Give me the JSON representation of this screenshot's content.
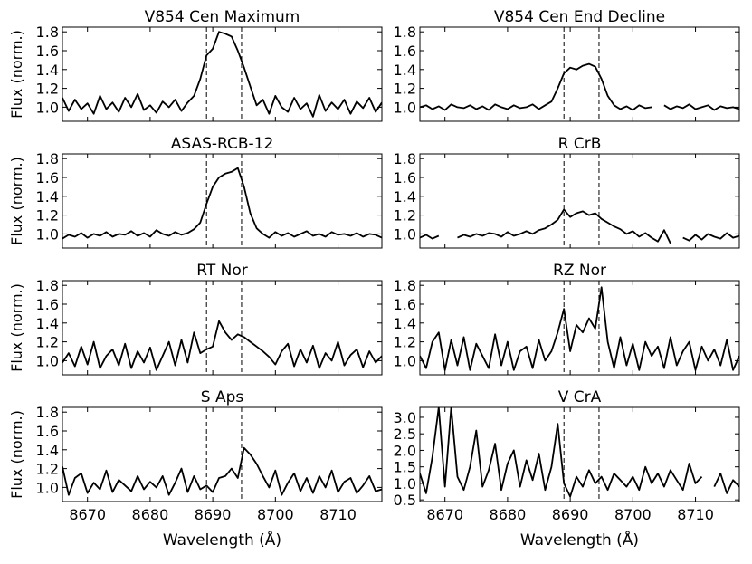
{
  "chart_data": {
    "type": "line",
    "xlabel": "Wavelength (Å)",
    "ylabel": "Flux (norm.)",
    "xlim": [
      8666,
      8717
    ],
    "xticks": [
      8670,
      8680,
      8690,
      8700,
      8710
    ],
    "xticklabels": [
      "8670",
      "8680",
      "8690",
      "8700",
      "8710"
    ],
    "reference_lines": [
      8689.0,
      8694.6
    ],
    "panels": [
      {
        "title": "V854 Cen Maximum",
        "ylim": [
          0.85,
          1.85
        ],
        "yticks": [
          1.0,
          1.2,
          1.4,
          1.6,
          1.8
        ],
        "yticklabels": [
          "1.0",
          "1.2",
          "1.4",
          "1.6",
          "1.8"
        ],
        "x": [
          8666,
          8667,
          8668,
          8669,
          8670,
          8671,
          8672,
          8673,
          8674,
          8675,
          8676,
          8677,
          8678,
          8679,
          8680,
          8681,
          8682,
          8683,
          8684,
          8685,
          8686,
          8687,
          8688,
          8689,
          8690,
          8691,
          8692,
          8693,
          8694,
          8695,
          8696,
          8697,
          8698,
          8699,
          8700,
          8701,
          8702,
          8703,
          8704,
          8705,
          8706,
          8707,
          8708,
          8709,
          8710,
          8711,
          8712,
          8713,
          8714,
          8715,
          8716,
          8717
        ],
        "y": [
          1.1,
          0.96,
          1.08,
          0.98,
          1.04,
          0.93,
          1.12,
          0.98,
          1.05,
          0.95,
          1.1,
          1.0,
          1.14,
          0.97,
          1.02,
          0.94,
          1.06,
          1.0,
          1.08,
          0.96,
          1.05,
          1.12,
          1.3,
          1.55,
          1.62,
          1.8,
          1.78,
          1.75,
          1.6,
          1.42,
          1.22,
          1.02,
          1.08,
          0.93,
          1.12,
          1.0,
          0.95,
          1.1,
          0.98,
          1.04,
          0.9,
          1.13,
          0.96,
          1.05,
          0.98,
          1.08,
          0.93,
          1.06,
          0.99,
          1.1,
          0.95,
          1.05
        ]
      },
      {
        "title": "V854 Cen End Decline",
        "ylim": [
          0.85,
          1.85
        ],
        "yticks": [
          1.0,
          1.2,
          1.4,
          1.6,
          1.8
        ],
        "yticklabels": [
          "1.0",
          "1.2",
          "1.4",
          "1.6",
          "1.8"
        ],
        "x": [
          8666,
          8667,
          8668,
          8669,
          8670,
          8671,
          8672,
          8673,
          8674,
          8675,
          8676,
          8677,
          8678,
          8679,
          8680,
          8681,
          8682,
          8683,
          8684,
          8685,
          8686,
          8687,
          8688,
          8689,
          8690,
          8691,
          8692,
          8693,
          8694,
          8695,
          8696,
          8697,
          8698,
          8699,
          8700,
          8701,
          8702,
          8703,
          8704,
          8705,
          8706,
          8707,
          8708,
          8709,
          8710,
          8711,
          8712,
          8713,
          8714,
          8715,
          8716,
          8717
        ],
        "y": [
          1.0,
          1.02,
          0.98,
          1.01,
          0.97,
          1.03,
          1.0,
          0.99,
          1.02,
          0.98,
          1.01,
          0.97,
          1.03,
          1.0,
          0.98,
          1.02,
          0.99,
          1.0,
          1.03,
          0.98,
          1.02,
          1.06,
          1.2,
          1.36,
          1.42,
          1.4,
          1.44,
          1.46,
          1.43,
          1.3,
          1.12,
          1.02,
          0.98,
          1.01,
          0.97,
          1.02,
          0.99,
          1.0,
          null,
          1.02,
          0.98,
          1.01,
          0.99,
          1.03,
          0.98,
          1.0,
          1.02,
          0.97,
          1.01,
          0.99,
          1.0,
          0.98
        ]
      },
      {
        "title": "ASAS-RCB-12",
        "ylim": [
          0.85,
          1.85
        ],
        "yticks": [
          1.0,
          1.2,
          1.4,
          1.6,
          1.8
        ],
        "yticklabels": [
          "1.0",
          "1.2",
          "1.4",
          "1.6",
          "1.8"
        ],
        "x": [
          8666,
          8667,
          8668,
          8669,
          8670,
          8671,
          8672,
          8673,
          8674,
          8675,
          8676,
          8677,
          8678,
          8679,
          8680,
          8681,
          8682,
          8683,
          8684,
          8685,
          8686,
          8687,
          8688,
          8689,
          8690,
          8691,
          8692,
          8693,
          8694,
          8695,
          8696,
          8697,
          8698,
          8699,
          8700,
          8701,
          8702,
          8703,
          8704,
          8705,
          8706,
          8707,
          8708,
          8709,
          8710,
          8711,
          8712,
          8713,
          8714,
          8715,
          8716,
          8717
        ],
        "y": [
          0.95,
          0.99,
          0.97,
          1.01,
          0.96,
          1.0,
          0.98,
          1.02,
          0.97,
          1.0,
          0.99,
          1.03,
          0.98,
          1.01,
          0.97,
          1.04,
          1.0,
          0.98,
          1.02,
          0.99,
          1.01,
          1.05,
          1.12,
          1.32,
          1.5,
          1.6,
          1.64,
          1.66,
          1.7,
          1.5,
          1.22,
          1.06,
          1.0,
          0.96,
          1.02,
          0.98,
          1.01,
          0.97,
          1.0,
          1.03,
          0.98,
          1.0,
          0.97,
          1.02,
          0.99,
          1.0,
          0.98,
          1.01,
          0.97,
          1.0,
          0.99,
          0.96
        ]
      },
      {
        "title": "R CrB",
        "ylim": [
          0.85,
          1.85
        ],
        "yticks": [
          1.0,
          1.2,
          1.4,
          1.6,
          1.8
        ],
        "yticklabels": [
          "1.0",
          "1.2",
          "1.4",
          "1.6",
          "1.8"
        ],
        "x": [
          8666,
          8667,
          8668,
          8669,
          8670,
          8671,
          8672,
          8673,
          8674,
          8675,
          8676,
          8677,
          8678,
          8679,
          8680,
          8681,
          8682,
          8683,
          8684,
          8685,
          8686,
          8687,
          8688,
          8689,
          8690,
          8691,
          8692,
          8693,
          8694,
          8695,
          8696,
          8697,
          8698,
          8699,
          8700,
          8701,
          8702,
          8703,
          8704,
          8705,
          8706,
          8707,
          8708,
          8709,
          8710,
          8711,
          8712,
          8713,
          8714,
          8715,
          8716,
          8717
        ],
        "y": [
          0.96,
          0.99,
          0.95,
          0.98,
          null,
          null,
          0.96,
          0.99,
          0.97,
          1.0,
          0.98,
          1.01,
          1.0,
          0.97,
          1.02,
          0.98,
          1.0,
          1.03,
          1.0,
          1.04,
          1.06,
          1.1,
          1.15,
          1.26,
          1.18,
          1.22,
          1.24,
          1.2,
          1.22,
          1.16,
          1.12,
          1.08,
          1.05,
          1.0,
          1.03,
          0.97,
          1.01,
          0.96,
          0.92,
          1.04,
          0.9,
          null,
          0.96,
          0.93,
          0.99,
          0.94,
          1.0,
          0.97,
          0.95,
          1.01,
          0.96,
          0.98
        ]
      },
      {
        "title": "RT Nor",
        "ylim": [
          0.85,
          1.85
        ],
        "yticks": [
          1.0,
          1.2,
          1.4,
          1.6,
          1.8
        ],
        "yticklabels": [
          "1.0",
          "1.2",
          "1.4",
          "1.6",
          "1.8"
        ],
        "x": [
          8666,
          8667,
          8668,
          8669,
          8670,
          8671,
          8672,
          8673,
          8674,
          8675,
          8676,
          8677,
          8678,
          8679,
          8680,
          8681,
          8682,
          8683,
          8684,
          8685,
          8686,
          8687,
          8688,
          8689,
          8690,
          8691,
          8692,
          8693,
          8694,
          8695,
          8696,
          8697,
          8698,
          8699,
          8700,
          8701,
          8702,
          8703,
          8704,
          8705,
          8706,
          8707,
          8708,
          8709,
          8710,
          8711,
          8712,
          8713,
          8714,
          8715,
          8716,
          8717
        ],
        "y": [
          0.98,
          1.08,
          0.94,
          1.15,
          0.96,
          1.2,
          0.92,
          1.05,
          1.12,
          0.95,
          1.18,
          0.92,
          1.1,
          0.98,
          1.14,
          0.9,
          1.05,
          1.2,
          0.95,
          1.22,
          0.98,
          1.3,
          1.08,
          1.12,
          1.15,
          1.42,
          1.3,
          1.22,
          1.28,
          1.25,
          1.2,
          1.15,
          1.1,
          1.04,
          0.96,
          1.1,
          1.18,
          0.94,
          1.12,
          0.98,
          1.16,
          0.92,
          1.08,
          1.0,
          1.2,
          0.95,
          1.06,
          1.12,
          0.93,
          1.1,
          0.98,
          1.05
        ]
      },
      {
        "title": "RZ Nor",
        "ylim": [
          0.85,
          1.85
        ],
        "yticks": [
          1.0,
          1.2,
          1.4,
          1.6,
          1.8
        ],
        "yticklabels": [
          "1.0",
          "1.2",
          "1.4",
          "1.6",
          "1.8"
        ],
        "x": [
          8666,
          8667,
          8668,
          8669,
          8670,
          8671,
          8672,
          8673,
          8674,
          8675,
          8676,
          8677,
          8678,
          8679,
          8680,
          8681,
          8682,
          8683,
          8684,
          8685,
          8686,
          8687,
          8688,
          8689,
          8690,
          8691,
          8692,
          8693,
          8694,
          8695,
          8696,
          8697,
          8698,
          8699,
          8700,
          8701,
          8702,
          8703,
          8704,
          8705,
          8706,
          8707,
          8708,
          8709,
          8710,
          8711,
          8712,
          8713,
          8714,
          8715,
          8716,
          8717
        ],
        "y": [
          1.05,
          0.92,
          1.2,
          1.3,
          0.9,
          1.22,
          0.95,
          1.25,
          0.9,
          1.18,
          1.05,
          0.92,
          1.28,
          0.95,
          1.2,
          0.9,
          1.1,
          1.15,
          0.92,
          1.22,
          1.0,
          1.1,
          1.3,
          1.55,
          1.1,
          1.38,
          1.3,
          1.45,
          1.34,
          1.78,
          1.2,
          0.92,
          1.25,
          0.95,
          1.18,
          0.9,
          1.2,
          1.05,
          1.15,
          0.92,
          1.25,
          0.95,
          1.1,
          1.2,
          0.9,
          1.15,
          1.0,
          1.12,
          0.95,
          1.22,
          0.9,
          1.05
        ]
      },
      {
        "title": "S Aps",
        "ylim": [
          0.85,
          1.85
        ],
        "yticks": [
          1.0,
          1.2,
          1.4,
          1.6,
          1.8
        ],
        "yticklabels": [
          "1.0",
          "1.2",
          "1.4",
          "1.6",
          "1.8"
        ],
        "x": [
          8666,
          8667,
          8668,
          8669,
          8670,
          8671,
          8672,
          8673,
          8674,
          8675,
          8676,
          8677,
          8678,
          8679,
          8680,
          8681,
          8682,
          8683,
          8684,
          8685,
          8686,
          8687,
          8688,
          8689,
          8690,
          8691,
          8692,
          8693,
          8694,
          8695,
          8696,
          8697,
          8698,
          8699,
          8700,
          8701,
          8702,
          8703,
          8704,
          8705,
          8706,
          8707,
          8708,
          8709,
          8710,
          8711,
          8712,
          8713,
          8714,
          8715,
          8716,
          8717
        ],
        "y": [
          1.22,
          0.92,
          1.1,
          1.15,
          0.94,
          1.05,
          0.98,
          1.18,
          0.95,
          1.08,
          1.02,
          0.96,
          1.12,
          0.98,
          1.06,
          1.0,
          1.12,
          0.92,
          1.05,
          1.2,
          0.95,
          1.12,
          0.98,
          1.02,
          0.95,
          1.1,
          1.12,
          1.2,
          1.1,
          1.42,
          1.35,
          1.25,
          1.12,
          1.0,
          1.18,
          0.92,
          1.05,
          1.15,
          0.96,
          1.1,
          0.94,
          1.12,
          1.0,
          1.18,
          0.95,
          1.06,
          1.1,
          0.94,
          1.02,
          1.12,
          0.96,
          0.98
        ]
      },
      {
        "title": "V CrA",
        "ylim": [
          0.45,
          3.3
        ],
        "yticks": [
          0.5,
          1.0,
          1.5,
          2.0,
          2.5,
          3.0
        ],
        "yticklabels": [
          "0.5",
          "1.0",
          "1.5",
          "2.0",
          "2.5",
          "3.0"
        ],
        "x": [
          8666,
          8667,
          8668,
          8669,
          8670,
          8671,
          8672,
          8673,
          8674,
          8675,
          8676,
          8677,
          8678,
          8679,
          8680,
          8681,
          8682,
          8683,
          8684,
          8685,
          8686,
          8687,
          8688,
          8689,
          8690,
          8691,
          8692,
          8693,
          8694,
          8695,
          8696,
          8697,
          8698,
          8699,
          8700,
          8701,
          8702,
          8703,
          8704,
          8705,
          8706,
          8707,
          8708,
          8709,
          8710,
          8711,
          8712,
          8713,
          8714,
          8715,
          8716,
          8717
        ],
        "y": [
          1.3,
          0.7,
          1.8,
          3.3,
          0.9,
          3.3,
          1.2,
          0.8,
          1.5,
          2.6,
          0.9,
          1.4,
          2.2,
          0.8,
          1.6,
          2.0,
          0.9,
          1.7,
          1.1,
          1.9,
          0.8,
          1.5,
          2.8,
          1.0,
          0.6,
          1.2,
          0.9,
          1.4,
          1.0,
          1.2,
          0.8,
          1.3,
          1.1,
          0.9,
          1.2,
          0.8,
          1.5,
          1.0,
          1.3,
          0.9,
          1.4,
          1.1,
          0.8,
          1.6,
          1.0,
          1.2,
          null,
          0.9,
          1.3,
          0.7,
          1.1,
          0.9
        ]
      }
    ]
  }
}
